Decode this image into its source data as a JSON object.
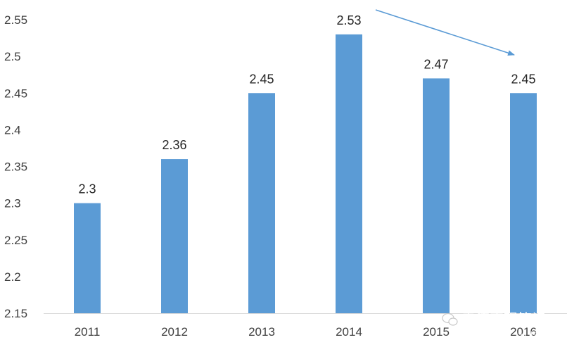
{
  "chart_data": {
    "type": "bar",
    "categories": [
      "2011",
      "2012",
      "2013",
      "2014",
      "2015",
      "2016"
    ],
    "values": [
      2.3,
      2.36,
      2.45,
      2.53,
      2.47,
      2.45
    ],
    "data_labels": [
      "2.3",
      "2.36",
      "2.45",
      "2.53",
      "2.47",
      "2.45"
    ],
    "y_ticks": [
      "2.15",
      "2.2",
      "2.25",
      "2.3",
      "2.35",
      "2.4",
      "2.45",
      "2.5",
      "2.55"
    ],
    "ylim": [
      2.15,
      2.55
    ],
    "title": "",
    "xlabel": "",
    "ylabel": "",
    "grid": false,
    "legend": "none",
    "annotation": "downward trend arrow from 2014 to 2016",
    "colors": {
      "bar": "#5b9bd5",
      "arrow": "#5b9bd5",
      "axis": "#d9d9d9",
      "tick_text": "#404040",
      "label_text": "#262626"
    }
  },
  "watermark": {
    "line1": "雪涛宏观笔记",
    "line2": "格隆汇",
    "icon": "wechat-icon"
  }
}
